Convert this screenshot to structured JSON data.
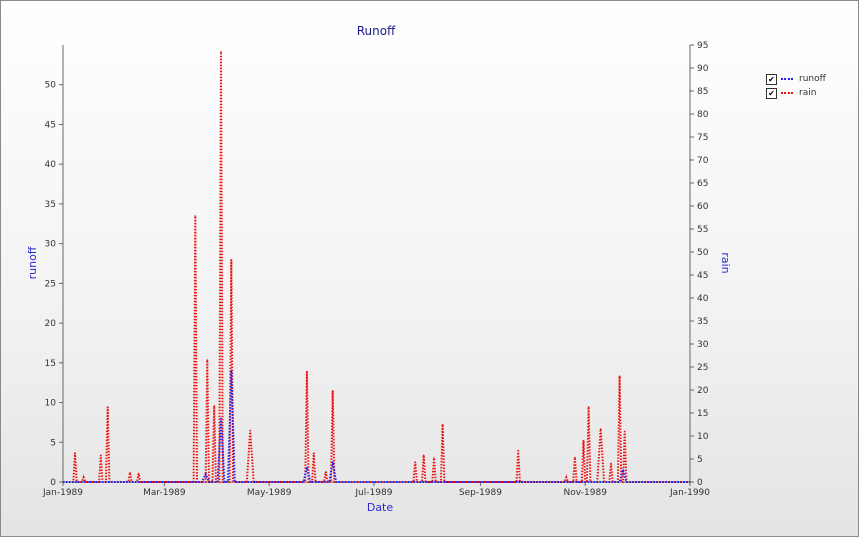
{
  "chart_data": {
    "type": "line",
    "title": "Runoff",
    "xlabel": "Date",
    "ylabel": "runoff",
    "y2label": "rain",
    "x_ticks": [
      "Jan-1989",
      "Mar-1989",
      "May-1989",
      "Jul-1989",
      "Sep-1989",
      "Nov-1989",
      "Jan-1990"
    ],
    "x_range": [
      "1989-01-01",
      "1990-01-01"
    ],
    "ylim": [
      0,
      55
    ],
    "y_ticks": [
      0,
      5,
      10,
      15,
      20,
      25,
      30,
      35,
      40,
      45,
      50
    ],
    "y2lim": [
      0,
      95
    ],
    "y2_ticks": [
      0,
      5,
      10,
      15,
      20,
      25,
      30,
      35,
      40,
      45,
      50,
      55,
      60,
      65,
      70,
      75,
      80,
      85,
      90,
      95
    ],
    "grid": false,
    "legend_position": "top-right",
    "colors": {
      "runoff": "#2222ee",
      "rain": "#ee1111",
      "axis_title": "#1a1a8c"
    },
    "series": [
      {
        "name": "runoff",
        "axis": "left",
        "points": [
          [
            "1989-03-23",
            0
          ],
          [
            "1989-03-25",
            1.0
          ],
          [
            "1989-03-27",
            0
          ],
          [
            "1989-04-01",
            0
          ],
          [
            "1989-04-03",
            8
          ],
          [
            "1989-04-05",
            0
          ],
          [
            "1989-04-07",
            0
          ],
          [
            "1989-04-09",
            14
          ],
          [
            "1989-04-11",
            0
          ],
          [
            "1989-05-21",
            0
          ],
          [
            "1989-05-23",
            1.8
          ],
          [
            "1989-05-25",
            0
          ],
          [
            "1989-06-05",
            0
          ],
          [
            "1989-06-07",
            2.5
          ],
          [
            "1989-06-09",
            0
          ],
          [
            "1989-11-21",
            0
          ],
          [
            "1989-11-23",
            1.5
          ],
          [
            "1989-11-25",
            0
          ]
        ]
      },
      {
        "name": "rain",
        "axis": "right",
        "points": [
          [
            "1989-01-07",
            0
          ],
          [
            "1989-01-08",
            6.3
          ],
          [
            "1989-01-09",
            0
          ],
          [
            "1989-01-12",
            0
          ],
          [
            "1989-01-13",
            1
          ],
          [
            "1989-01-14",
            0
          ],
          [
            "1989-01-22",
            0
          ],
          [
            "1989-01-23",
            5.8
          ],
          [
            "1989-01-24",
            0
          ],
          [
            "1989-01-26",
            0
          ],
          [
            "1989-01-27",
            16.3
          ],
          [
            "1989-01-28",
            0
          ],
          [
            "1989-02-08",
            0
          ],
          [
            "1989-02-09",
            2
          ],
          [
            "1989-02-10",
            0
          ],
          [
            "1989-02-13",
            0
          ],
          [
            "1989-02-14",
            1.8
          ],
          [
            "1989-02-15",
            0
          ],
          [
            "1989-03-18",
            0
          ],
          [
            "1989-03-19",
            57.8
          ],
          [
            "1989-03-20",
            0
          ],
          [
            "1989-03-25",
            0
          ],
          [
            "1989-03-26",
            26.5
          ],
          [
            "1989-03-27",
            0
          ],
          [
            "1989-03-29",
            0
          ],
          [
            "1989-03-30",
            16.5
          ],
          [
            "1989-03-31",
            0
          ],
          [
            "1989-04-02",
            0
          ],
          [
            "1989-04-03",
            93.5
          ],
          [
            "1989-04-04",
            0
          ],
          [
            "1989-04-08",
            0
          ],
          [
            "1989-04-09",
            48.3
          ],
          [
            "1989-04-10",
            0
          ],
          [
            "1989-04-18",
            0
          ],
          [
            "1989-04-20",
            11.2
          ],
          [
            "1989-04-22",
            0
          ],
          [
            "1989-05-22",
            0
          ],
          [
            "1989-05-23",
            24
          ],
          [
            "1989-05-24",
            0
          ],
          [
            "1989-05-26",
            0
          ],
          [
            "1989-05-27",
            6.3
          ],
          [
            "1989-05-28",
            0
          ],
          [
            "1989-06-02",
            0
          ],
          [
            "1989-06-03",
            2.2
          ],
          [
            "1989-06-04",
            0
          ],
          [
            "1989-06-06",
            0
          ],
          [
            "1989-06-07",
            19.8
          ],
          [
            "1989-06-08",
            0
          ],
          [
            "1989-07-24",
            0
          ],
          [
            "1989-07-25",
            4.3
          ],
          [
            "1989-07-26",
            0
          ],
          [
            "1989-07-29",
            0
          ],
          [
            "1989-07-30",
            5.8
          ],
          [
            "1989-07-31",
            0
          ],
          [
            "1989-08-04",
            0
          ],
          [
            "1989-08-05",
            5.2
          ],
          [
            "1989-08-06",
            0
          ],
          [
            "1989-08-09",
            0
          ],
          [
            "1989-08-10",
            12.5
          ],
          [
            "1989-08-11",
            0
          ],
          [
            "1989-09-22",
            0
          ],
          [
            "1989-09-23",
            6.8
          ],
          [
            "1989-09-24",
            0
          ],
          [
            "1989-10-20",
            0
          ],
          [
            "1989-10-21",
            1
          ],
          [
            "1989-10-22",
            0
          ],
          [
            "1989-10-25",
            0
          ],
          [
            "1989-10-26",
            5.3
          ],
          [
            "1989-10-27",
            0
          ],
          [
            "1989-10-30",
            0
          ],
          [
            "1989-10-31",
            9
          ],
          [
            "1989-11-01",
            0
          ],
          [
            "1989-11-02",
            0
          ],
          [
            "1989-11-03",
            16.3
          ],
          [
            "1989-11-04",
            0
          ],
          [
            "1989-11-08",
            0
          ],
          [
            "1989-11-10",
            11.5
          ],
          [
            "1989-11-12",
            0
          ],
          [
            "1989-11-15",
            0
          ],
          [
            "1989-11-16",
            4
          ],
          [
            "1989-11-17",
            0
          ],
          [
            "1989-11-20",
            0
          ],
          [
            "1989-11-21",
            23
          ],
          [
            "1989-11-22",
            0
          ],
          [
            "1989-11-23",
            0
          ],
          [
            "1989-11-24",
            11
          ],
          [
            "1989-11-25",
            0
          ]
        ]
      }
    ]
  }
}
